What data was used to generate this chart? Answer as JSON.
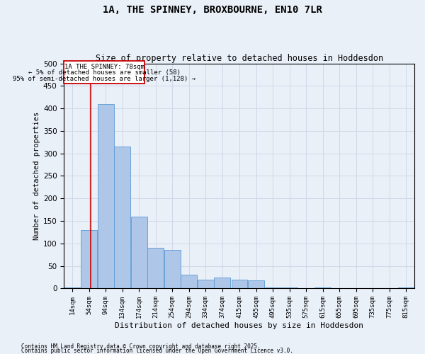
{
  "title_line1": "1A, THE SPINNEY, BROXBOURNE, EN10 7LR",
  "title_line2": "Size of property relative to detached houses in Hoddesdon",
  "xlabel": "Distribution of detached houses by size in Hoddesdon",
  "ylabel": "Number of detached properties",
  "footnote1": "Contains HM Land Registry data © Crown copyright and database right 2025.",
  "footnote2": "Contains public sector information licensed under the Open Government Licence v3.0.",
  "annotation_line1": "1A THE SPINNEY: 78sqm",
  "annotation_line2": "← 5% of detached houses are smaller (58)",
  "annotation_line3": "95% of semi-detached houses are larger (1,128) →",
  "red_line_x": 78,
  "bar_color": "#aec6e8",
  "bar_edge_color": "#5b9bd5",
  "red_line_color": "#cc0000",
  "grid_color": "#d0d8e8",
  "bg_color": "#eaf0f8",
  "categories": [
    "14sqm",
    "54sqm",
    "94sqm",
    "134sqm",
    "174sqm",
    "214sqm",
    "254sqm",
    "294sqm",
    "334sqm",
    "374sqm",
    "415sqm",
    "455sqm",
    "495sqm",
    "535sqm",
    "575sqm",
    "615sqm",
    "655sqm",
    "695sqm",
    "735sqm",
    "775sqm",
    "815sqm"
  ],
  "bin_edges": [
    14,
    54,
    94,
    134,
    174,
    214,
    254,
    294,
    334,
    374,
    415,
    455,
    495,
    535,
    575,
    615,
    655,
    695,
    735,
    775,
    815,
    855
  ],
  "values": [
    3,
    130,
    410,
    315,
    160,
    90,
    85,
    30,
    20,
    25,
    20,
    18,
    3,
    3,
    0,
    3,
    0,
    0,
    0,
    0,
    3
  ],
  "ylim": [
    0,
    500
  ],
  "yticks": [
    0,
    50,
    100,
    150,
    200,
    250,
    300,
    350,
    400,
    450,
    500
  ]
}
